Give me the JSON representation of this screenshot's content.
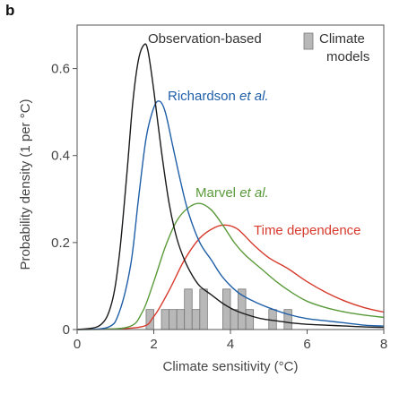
{
  "panel_label": "b",
  "chart_data": {
    "type": "line",
    "xlabel": "Climate sensitivity (°C)",
    "ylabel": "Probability density (1 per °C)",
    "xlim": [
      0,
      8
    ],
    "ylim": [
      0,
      0.7
    ],
    "xticks": [
      0,
      2,
      4,
      6,
      8
    ],
    "yticks": [
      0,
      0.2,
      0.4,
      0.6
    ],
    "ytick_labels": [
      "0",
      "0.2",
      "0.4",
      "0.6"
    ],
    "grid": false,
    "series": [
      {
        "name": "Observation-based",
        "color": "#1a1a1a",
        "x": [
          0,
          0.6,
          0.9,
          1.1,
          1.3,
          1.45,
          1.6,
          1.75,
          1.85,
          2.0,
          2.2,
          2.4,
          2.6,
          2.8,
          3.0,
          3.2,
          3.5,
          3.8,
          4.1,
          4.4,
          4.8,
          5.2,
          5.6,
          6.0,
          6.5,
          7.0,
          7.5,
          8.0
        ],
        "y": [
          0,
          0.01,
          0.06,
          0.17,
          0.36,
          0.52,
          0.62,
          0.655,
          0.64,
          0.55,
          0.41,
          0.29,
          0.21,
          0.16,
          0.125,
          0.1,
          0.08,
          0.06,
          0.045,
          0.035,
          0.025,
          0.02,
          0.015,
          0.012,
          0.01,
          0.008,
          0.006,
          0.005
        ],
        "label_color": "#333333"
      },
      {
        "name": "Richardson et al.",
        "color": "#1f5fa8",
        "x": [
          0,
          0.8,
          1.1,
          1.4,
          1.6,
          1.8,
          2.0,
          2.15,
          2.3,
          2.5,
          2.7,
          2.9,
          3.2,
          3.5,
          3.8,
          4.2,
          4.6,
          5.0,
          5.5,
          6.0,
          6.5,
          7.0,
          7.5,
          8.0
        ],
        "y": [
          0,
          0.005,
          0.04,
          0.15,
          0.3,
          0.44,
          0.51,
          0.525,
          0.5,
          0.42,
          0.34,
          0.27,
          0.2,
          0.16,
          0.12,
          0.085,
          0.065,
          0.05,
          0.035,
          0.025,
          0.02,
          0.015,
          0.01,
          0.008
        ],
        "label_color": "#1f5fa8"
      },
      {
        "name": "Marvel et al.",
        "color": "#5a9a3a",
        "x": [
          0,
          1.3,
          1.7,
          2.0,
          2.3,
          2.6,
          2.9,
          3.2,
          3.5,
          3.8,
          4.1,
          4.4,
          4.8,
          5.2,
          5.6,
          6.0,
          6.5,
          7.0,
          7.5,
          8.0
        ],
        "y": [
          0,
          0.005,
          0.04,
          0.11,
          0.19,
          0.25,
          0.28,
          0.29,
          0.275,
          0.24,
          0.2,
          0.17,
          0.14,
          0.11,
          0.085,
          0.065,
          0.05,
          0.04,
          0.033,
          0.028
        ],
        "label_color": "#5a9a3a"
      },
      {
        "name": "Time dependence",
        "color": "#d63a2c",
        "x": [
          0,
          1.6,
          2.0,
          2.4,
          2.8,
          3.2,
          3.6,
          3.9,
          4.2,
          4.6,
          5.0,
          5.5,
          6.0,
          6.5,
          7.0,
          7.5,
          8.0
        ],
        "y": [
          0,
          0.005,
          0.03,
          0.09,
          0.16,
          0.21,
          0.235,
          0.24,
          0.23,
          0.195,
          0.165,
          0.14,
          0.11,
          0.085,
          0.065,
          0.05,
          0.04
        ],
        "label_color": "#d63a2c"
      }
    ],
    "histogram": {
      "name": "Climate models",
      "color": "#b8b8b8",
      "bin_width": 0.2,
      "bins": [
        {
          "x": 1.8,
          "y": 0.046
        },
        {
          "x": 2.2,
          "y": 0.046
        },
        {
          "x": 2.4,
          "y": 0.046
        },
        {
          "x": 2.6,
          "y": 0.046
        },
        {
          "x": 2.8,
          "y": 0.093
        },
        {
          "x": 3.0,
          "y": 0.046
        },
        {
          "x": 3.2,
          "y": 0.093
        },
        {
          "x": 3.8,
          "y": 0.093
        },
        {
          "x": 4.0,
          "y": 0.046
        },
        {
          "x": 4.2,
          "y": 0.093
        },
        {
          "x": 4.4,
          "y": 0.046
        },
        {
          "x": 5.0,
          "y": 0.046
        },
        {
          "x": 5.4,
          "y": 0.046
        }
      ]
    },
    "legend": {
      "position": "top-right",
      "label_line1": "Climate",
      "label_line2": "models"
    }
  }
}
